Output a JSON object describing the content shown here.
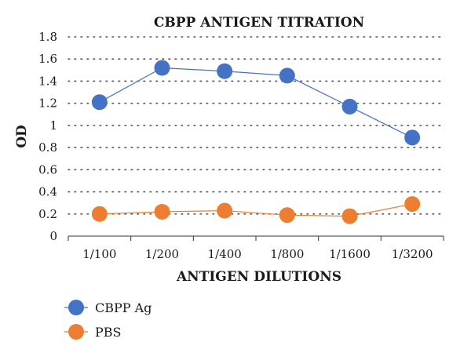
{
  "chart_data": {
    "type": "line",
    "title": "CBPP ANTIGEN TITRATION",
    "xlabel": "ANTIGEN DILUTIONS",
    "ylabel": "OD",
    "categories": [
      "1/100",
      "1/200",
      "1/400",
      "1/800",
      "1/1600",
      "1/3200"
    ],
    "ylim": [
      0,
      1.8
    ],
    "yticks": [
      "0",
      "0.2",
      "0.4",
      "0.6",
      "0.8",
      "1",
      "1.2",
      "1.4",
      "1.6",
      "1.8"
    ],
    "grid": true,
    "legend_position": "bottom-left",
    "series": [
      {
        "name": "CBPP Ag",
        "color": "#4472C4",
        "values": [
          1.21,
          1.52,
          1.49,
          1.45,
          1.17,
          0.89
        ]
      },
      {
        "name": "PBS",
        "color": "#ED7D31",
        "values": [
          0.2,
          0.22,
          0.23,
          0.19,
          0.18,
          0.29
        ]
      }
    ]
  }
}
